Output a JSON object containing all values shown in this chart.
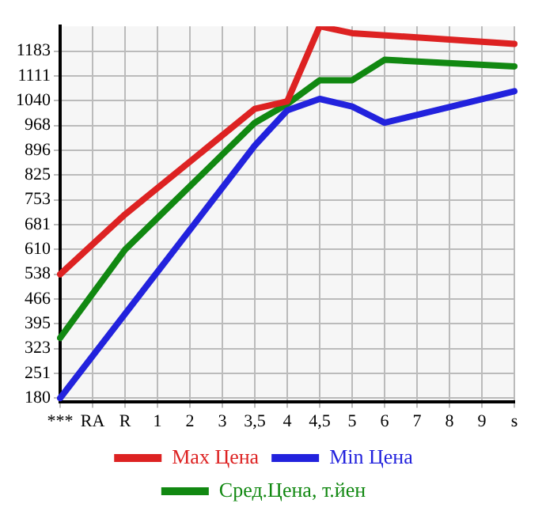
{
  "chart_data": {
    "type": "line",
    "categories": [
      "***",
      "RA",
      "R",
      "1",
      "2",
      "3",
      "3,5",
      "4",
      "4,5",
      "5",
      "6",
      "7",
      "8",
      "9",
      "s"
    ],
    "series": [
      {
        "name": "Max Цена",
        "color": "#dd2222",
        "values": [
          538,
          null,
          711,
          null,
          null,
          null,
          1016,
          1038,
          1255,
          1235,
          null,
          null,
          null,
          null,
          1204
        ]
      },
      {
        "name": "Min Цена",
        "color": "#2222dd",
        "values": [
          180,
          null,
          null,
          null,
          null,
          null,
          910,
          1012,
          1045,
          1023,
          976,
          null,
          null,
          null,
          1067
        ]
      },
      {
        "name": "Сред.Цена, т.йен",
        "color": "#118811",
        "values": [
          354,
          null,
          609,
          null,
          null,
          null,
          976,
          1030,
          1099,
          1099,
          1158,
          null,
          null,
          null,
          1139
        ]
      }
    ],
    "ylim": [
      170,
      1255
    ],
    "yticks": [
      180,
      251,
      323,
      395,
      466,
      538,
      610,
      681,
      753,
      825,
      896,
      968,
      1040,
      1111,
      1183
    ],
    "grid": true,
    "legend": "bottom",
    "marker": "none",
    "line_style": "solid"
  }
}
